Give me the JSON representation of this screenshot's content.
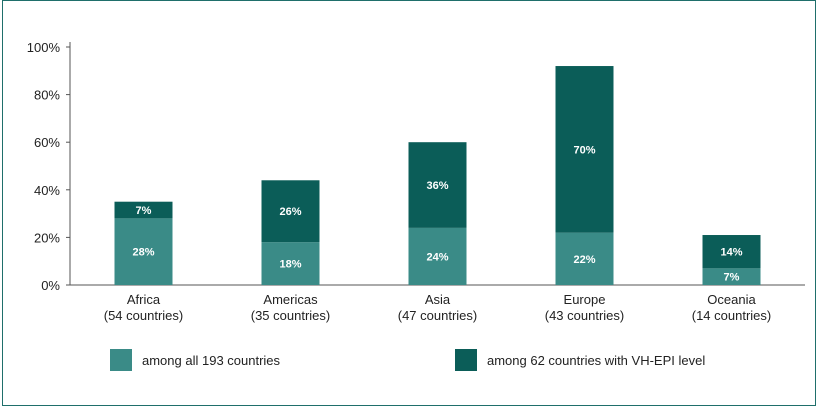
{
  "chart_data": {
    "type": "bar",
    "stacked": true,
    "categories": [
      "Africa\n(54 countries)",
      "Americas\n(35 countries)",
      "Asia\n(47 countries)",
      "Europe\n(43 countries)",
      "Oceania\n(14 countries)"
    ],
    "series": [
      {
        "name": "among all 193 countries",
        "color": "#3a8b87",
        "values": [
          28,
          18,
          24,
          22,
          7
        ],
        "labels": [
          "28%",
          "18%",
          "24%",
          "22%",
          "7%"
        ]
      },
      {
        "name": "among 62 countries with VH-EPI level",
        "color": "#0b5d58",
        "values": [
          7,
          26,
          36,
          70,
          14
        ],
        "labels": [
          "7%",
          "26%",
          "36%",
          "70%",
          "14%"
        ]
      }
    ],
    "ylim": [
      0,
      100
    ],
    "yticks": [
      "0%",
      "20%",
      "40%",
      "60%",
      "80%",
      "100%"
    ],
    "grid": false,
    "legend_position": "bottom"
  }
}
